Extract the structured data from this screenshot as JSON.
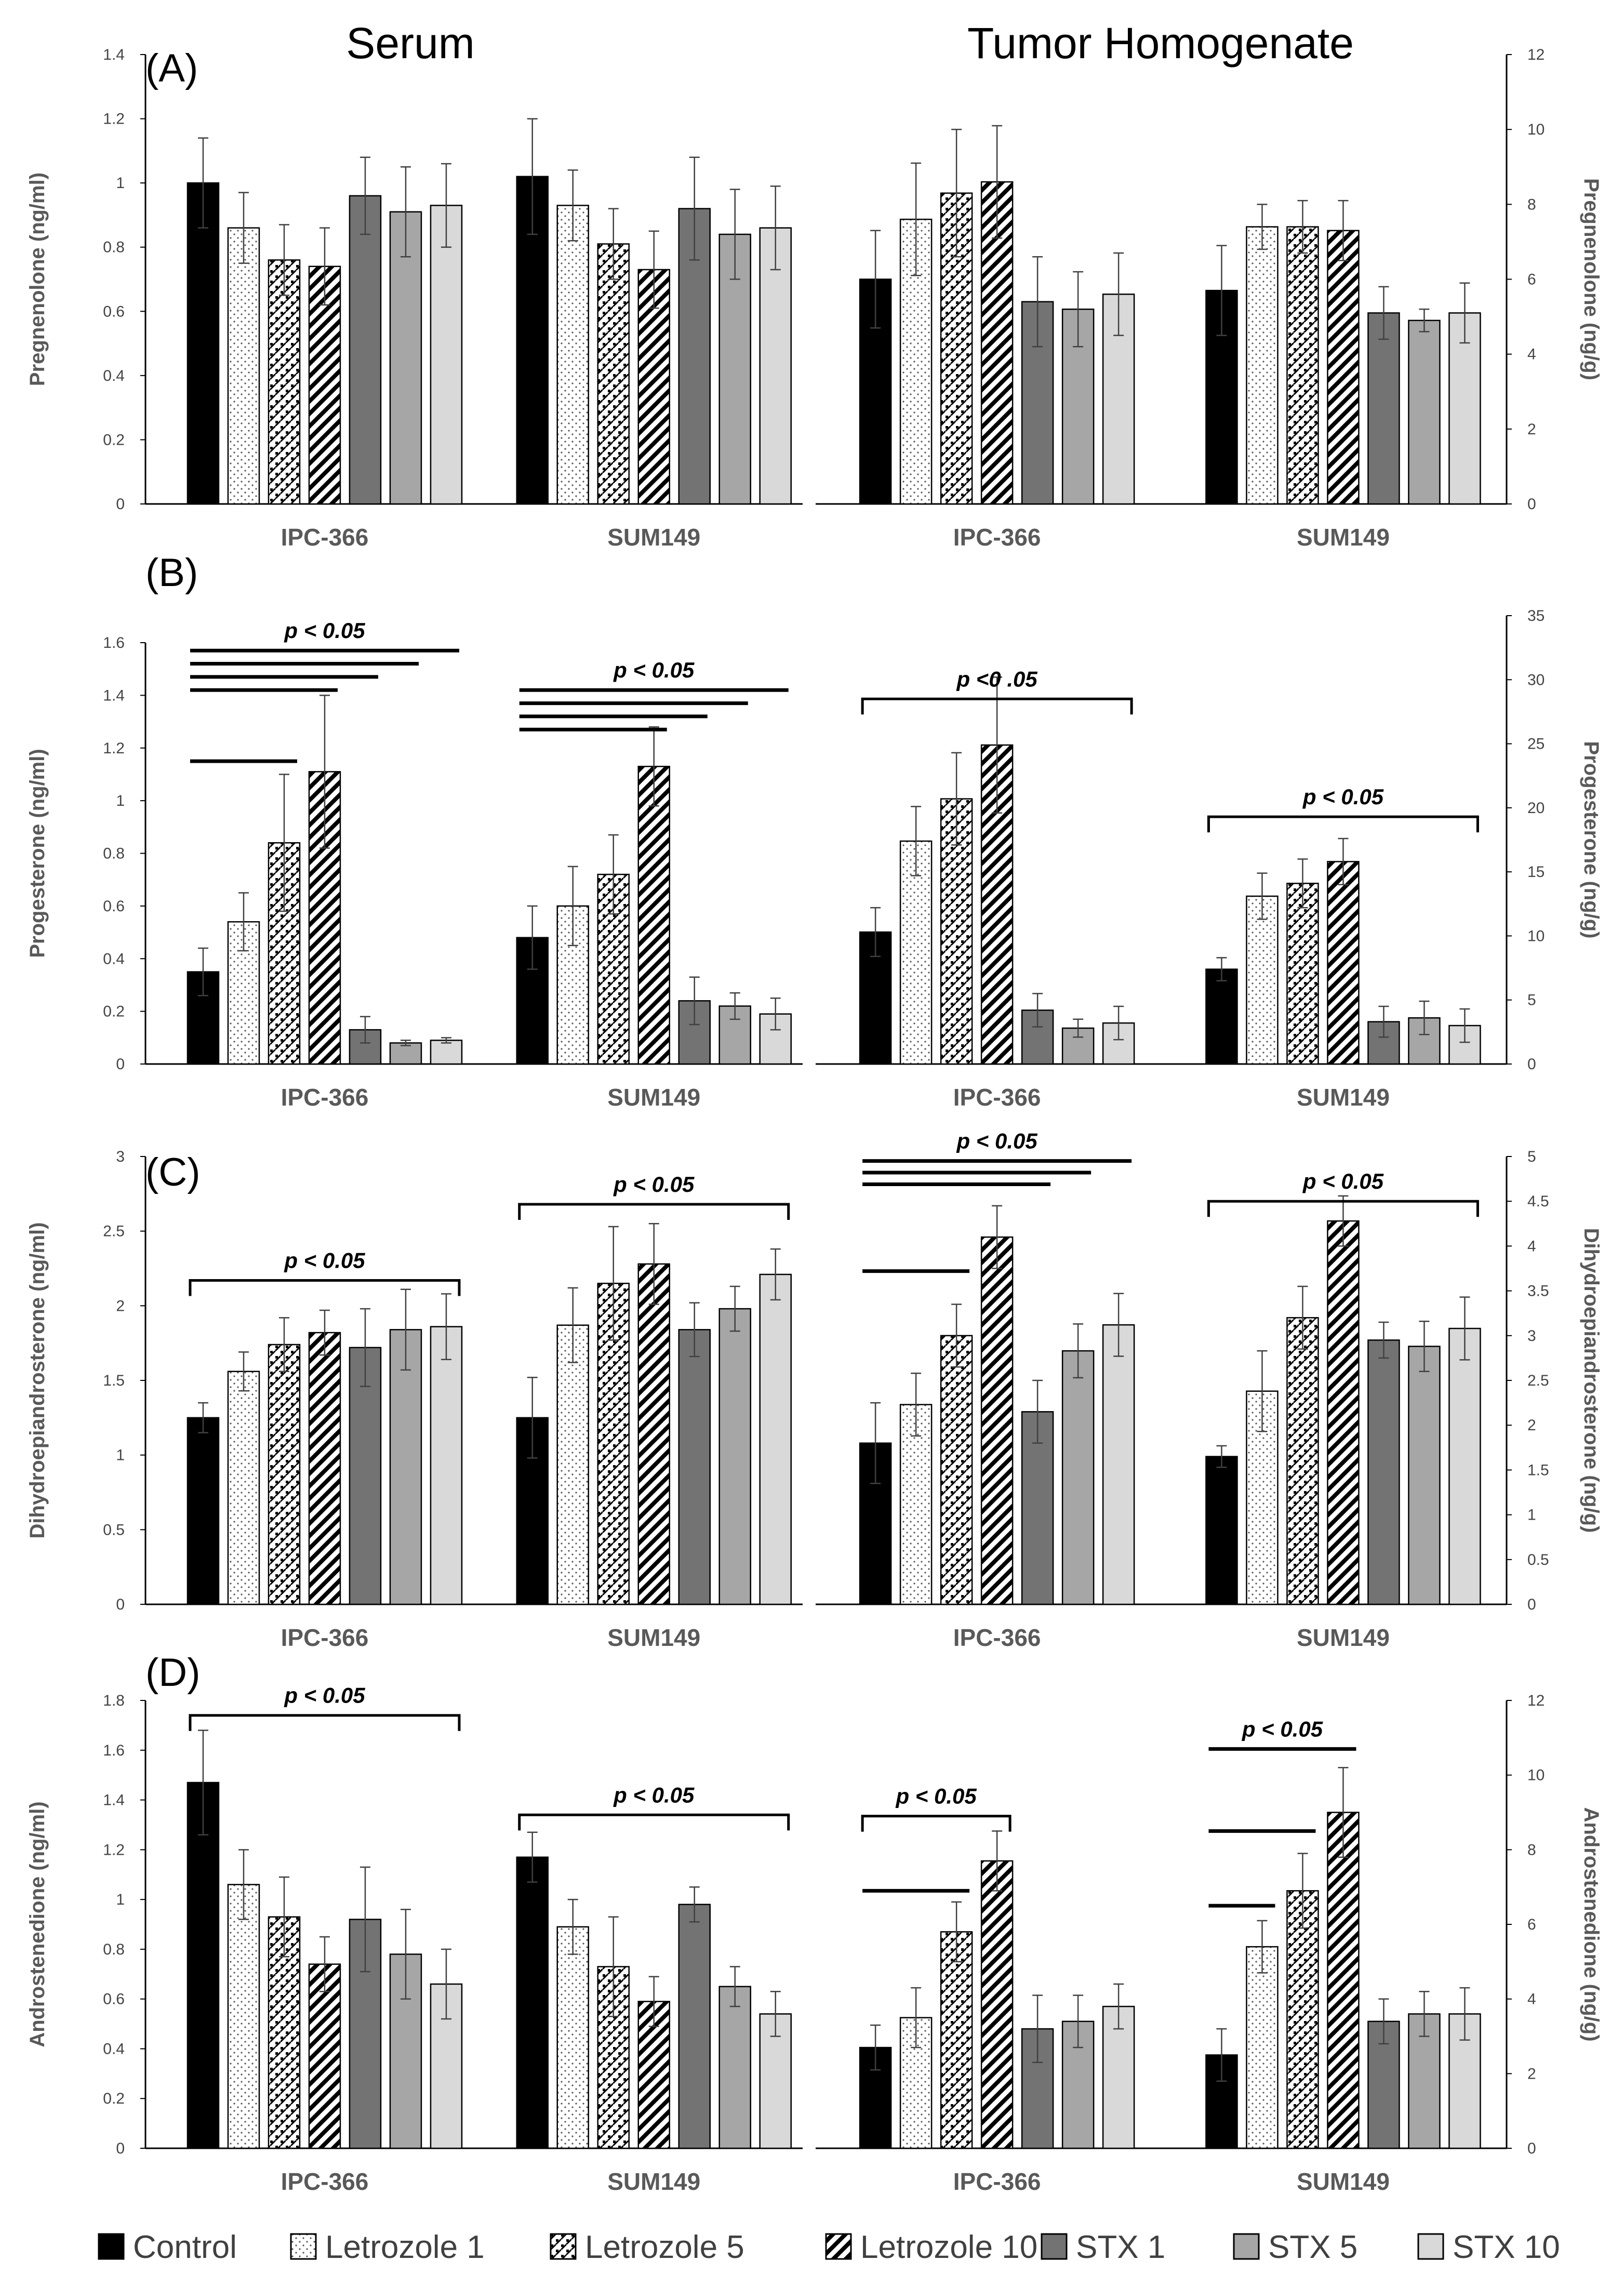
{
  "column_titles": [
    "Serum",
    "Tumor Homogenate"
  ],
  "legend": [
    {
      "label": "Control",
      "pattern": "black"
    },
    {
      "label": "Letrozole 1",
      "pattern": "dots"
    },
    {
      "label": "Letrozole 5",
      "pattern": "checker"
    },
    {
      "label": "Letrozole 10",
      "pattern": "diag"
    },
    {
      "label": "STX 1",
      "pattern": "dark"
    },
    {
      "label": "STX 5",
      "pattern": "mid"
    },
    {
      "label": "STX 10",
      "pattern": "light"
    }
  ],
  "colors": {
    "control": "#000000",
    "stx1": "#737373",
    "stx5": "#a6a6a6",
    "stx10": "#d9d9d9",
    "axis": "#7f7f7f"
  },
  "chart_data": [
    {
      "type": "bar",
      "panel": "(A)",
      "matrix": "Serum",
      "ylabel": "Pregnenolone (ng/ml)",
      "axis_side": "left",
      "ylim": [
        0,
        1.4
      ],
      "ticks": [
        "0",
        "0.2",
        "0.4",
        "0.6",
        "0.8",
        "1",
        "1.2",
        "1.4"
      ],
      "categories": [
        "IPC-366",
        "SUM149"
      ],
      "series": [
        {
          "name": "Control",
          "values": [
            1.0,
            1.02
          ],
          "errors": [
            0.14,
            0.18
          ]
        },
        {
          "name": "Letrozole 1",
          "values": [
            0.86,
            0.93
          ],
          "errors": [
            0.11,
            0.11
          ]
        },
        {
          "name": "Letrozole 5",
          "values": [
            0.76,
            0.81
          ],
          "errors": [
            0.11,
            0.11
          ]
        },
        {
          "name": "Letrozole 10",
          "values": [
            0.74,
            0.73
          ],
          "errors": [
            0.12,
            0.12
          ]
        },
        {
          "name": "STX 1",
          "values": [
            0.96,
            0.92
          ],
          "errors": [
            0.12,
            0.16
          ]
        },
        {
          "name": "STX 5",
          "values": [
            0.91,
            0.84
          ],
          "errors": [
            0.14,
            0.14
          ]
        },
        {
          "name": "STX 10",
          "values": [
            0.93,
            0.86
          ],
          "errors": [
            0.13,
            0.13
          ]
        }
      ],
      "significance": {
        "label": "",
        "lines": []
      }
    },
    {
      "type": "bar",
      "panel": "",
      "matrix": "Tumor Homogenate",
      "ylabel": "Pregnenolone (ng/g)",
      "axis_side": "right",
      "ylim": [
        0,
        12
      ],
      "ticks": [
        "0",
        "2",
        "4",
        "6",
        "8",
        "10",
        "12"
      ],
      "categories": [
        "IPC-366",
        "SUM149"
      ],
      "series": [
        {
          "name": "Control",
          "values": [
            6.0,
            5.7
          ],
          "errors": [
            1.3,
            1.2
          ]
        },
        {
          "name": "Letrozole 1",
          "values": [
            7.6,
            7.4
          ],
          "errors": [
            1.5,
            0.6
          ]
        },
        {
          "name": "Letrozole 5",
          "values": [
            8.3,
            7.4
          ],
          "errors": [
            1.7,
            0.7
          ]
        },
        {
          "name": "Letrozole 10",
          "values": [
            8.6,
            7.3
          ],
          "errors": [
            1.5,
            0.8
          ]
        },
        {
          "name": "STX 1",
          "values": [
            5.4,
            5.1
          ],
          "errors": [
            1.2,
            0.7
          ]
        },
        {
          "name": "STX 5",
          "values": [
            5.2,
            4.9
          ],
          "errors": [
            1.0,
            0.3
          ]
        },
        {
          "name": "STX 10",
          "values": [
            5.6,
            5.1
          ],
          "errors": [
            1.1,
            0.8
          ]
        }
      ],
      "significance": {
        "label": "",
        "lines": []
      }
    },
    {
      "type": "bar",
      "panel": "(B)",
      "matrix": "Serum",
      "ylabel": "Progesterone (ng/ml)",
      "axis_side": "left",
      "ylim": [
        0,
        1.6
      ],
      "ticks": [
        "0",
        "0.2",
        "0.4",
        "0.6",
        "0.8",
        "1",
        "1.2",
        "1.4",
        "1.6"
      ],
      "categories": [
        "IPC-366",
        "SUM149"
      ],
      "series": [
        {
          "name": "Control",
          "values": [
            0.35,
            0.48
          ],
          "errors": [
            0.09,
            0.12
          ]
        },
        {
          "name": "Letrozole 1",
          "values": [
            0.54,
            0.6
          ],
          "errors": [
            0.11,
            0.15
          ]
        },
        {
          "name": "Letrozole 5",
          "values": [
            0.84,
            0.72
          ],
          "errors": [
            0.26,
            0.15
          ]
        },
        {
          "name": "Letrozole 10",
          "values": [
            1.11,
            1.13
          ],
          "errors": [
            0.29,
            0.15
          ]
        },
        {
          "name": "STX 1",
          "values": [
            0.13,
            0.24
          ],
          "errors": [
            0.05,
            0.09
          ]
        },
        {
          "name": "STX 5",
          "values": [
            0.08,
            0.22
          ],
          "errors": [
            0.01,
            0.05
          ]
        },
        {
          "name": "STX 10",
          "values": [
            0.09,
            0.19
          ],
          "errors": [
            0.01,
            0.06
          ]
        }
      ],
      "significance": {
        "label": "p < 0.05",
        "lines": [
          {
            "group": 0,
            "from": 0,
            "to": 6,
            "level": 1.57,
            "style": "plain"
          },
          {
            "group": 0,
            "from": 0,
            "to": 5,
            "level": 1.52,
            "style": "plain"
          },
          {
            "group": 0,
            "from": 0,
            "to": 4,
            "level": 1.47,
            "style": "plain"
          },
          {
            "group": 0,
            "from": 0,
            "to": 3,
            "level": 1.42,
            "style": "plain"
          },
          {
            "group": 0,
            "from": 0,
            "to": 2,
            "level": 1.15,
            "style": "plain"
          },
          {
            "group": 1,
            "from": 0,
            "to": 6,
            "level": 1.42,
            "style": "plain"
          },
          {
            "group": 1,
            "from": 0,
            "to": 5,
            "level": 1.37,
            "style": "plain"
          },
          {
            "group": 1,
            "from": 0,
            "to": 4,
            "level": 1.32,
            "style": "plain"
          },
          {
            "group": 1,
            "from": 0,
            "to": 3,
            "level": 1.27,
            "style": "plain"
          }
        ]
      }
    },
    {
      "type": "bar",
      "panel": "",
      "matrix": "Tumor Homogenate",
      "ylabel": "Progesterone (ng/g)",
      "axis_side": "right",
      "ylim": [
        0,
        35
      ],
      "ticks": [
        "0",
        "5",
        "10",
        "15",
        "20",
        "25",
        "30",
        "35"
      ],
      "categories": [
        "IPC-366",
        "SUM149"
      ],
      "series": [
        {
          "name": "Control",
          "values": [
            10.3,
            7.4
          ],
          "errors": [
            1.9,
            0.9
          ]
        },
        {
          "name": "Letrozole 1",
          "values": [
            17.4,
            13.1
          ],
          "errors": [
            2.7,
            1.8
          ]
        },
        {
          "name": "Letrozole 5",
          "values": [
            20.7,
            14.1
          ],
          "errors": [
            3.6,
            1.9
          ]
        },
        {
          "name": "Letrozole 10",
          "values": [
            24.9,
            15.8
          ],
          "errors": [
            5.3,
            1.8
          ]
        },
        {
          "name": "STX 1",
          "values": [
            4.2,
            3.3
          ],
          "errors": [
            1.3,
            1.2
          ]
        },
        {
          "name": "STX 5",
          "values": [
            2.8,
            3.6
          ],
          "errors": [
            0.7,
            1.3
          ]
        },
        {
          "name": "STX 10",
          "values": [
            3.2,
            3.0
          ],
          "errors": [
            1.3,
            1.3
          ]
        }
      ],
      "significance": {
        "label": "p <0 .05",
        "label_b": "p < 0.05",
        "lines": [
          {
            "group": 0,
            "from": 0,
            "to": 6,
            "level": 28.5,
            "style": "bracket"
          },
          {
            "group": 1,
            "from": 0,
            "to": 6,
            "level": 19.3,
            "style": "bracket"
          }
        ]
      }
    },
    {
      "type": "bar",
      "panel": "(C)",
      "matrix": "Serum",
      "ylabel": "Dihydroepiandrosterone (ng/ml)",
      "axis_side": "left",
      "ylim": [
        0,
        3
      ],
      "ticks": [
        "0",
        "0.5",
        "1",
        "1.5",
        "2",
        "2.5",
        "3"
      ],
      "categories": [
        "IPC-366",
        "SUM149"
      ],
      "series": [
        {
          "name": "Control",
          "values": [
            1.25,
            1.25
          ],
          "errors": [
            0.1,
            0.27
          ]
        },
        {
          "name": "Letrozole 1",
          "values": [
            1.56,
            1.87
          ],
          "errors": [
            0.13,
            0.25
          ]
        },
        {
          "name": "Letrozole 5",
          "values": [
            1.74,
            2.15
          ],
          "errors": [
            0.18,
            0.38
          ]
        },
        {
          "name": "Letrozole 10",
          "values": [
            1.82,
            2.28
          ],
          "errors": [
            0.15,
            0.27
          ]
        },
        {
          "name": "STX 1",
          "values": [
            1.72,
            1.84
          ],
          "errors": [
            0.26,
            0.18
          ]
        },
        {
          "name": "STX 5",
          "values": [
            1.84,
            1.98
          ],
          "errors": [
            0.27,
            0.15
          ]
        },
        {
          "name": "STX 10",
          "values": [
            1.86,
            2.21
          ],
          "errors": [
            0.22,
            0.17
          ]
        }
      ],
      "significance": {
        "label": "p < 0.05",
        "lines": [
          {
            "group": 0,
            "from": 0,
            "to": 6,
            "level": 2.17,
            "style": "bracket"
          },
          {
            "group": 1,
            "from": 0,
            "to": 6,
            "level": 2.68,
            "style": "bracket"
          }
        ]
      }
    },
    {
      "type": "bar",
      "panel": "",
      "matrix": "Tumor Homogenate",
      "ylabel": "Dihydroepiandrosterone (ng/g)",
      "axis_side": "right",
      "ylim": [
        0,
        5
      ],
      "ticks": [
        "0",
        "0.5",
        "1",
        "1.5",
        "2",
        "2.5",
        "3",
        "3.5",
        "4",
        "4.5",
        "5"
      ],
      "categories": [
        "IPC-366",
        "SUM149"
      ],
      "series": [
        {
          "name": "Control",
          "values": [
            1.8,
            1.65
          ],
          "errors": [
            0.45,
            0.12
          ]
        },
        {
          "name": "Letrozole 1",
          "values": [
            2.23,
            2.38
          ],
          "errors": [
            0.35,
            0.45
          ]
        },
        {
          "name": "Letrozole 5",
          "values": [
            3.0,
            3.2
          ],
          "errors": [
            0.35,
            0.35
          ]
        },
        {
          "name": "Letrozole 10",
          "values": [
            4.1,
            4.28
          ],
          "errors": [
            0.35,
            0.28
          ]
        },
        {
          "name": "STX 1",
          "values": [
            2.15,
            2.95
          ],
          "errors": [
            0.35,
            0.2
          ]
        },
        {
          "name": "STX 5",
          "values": [
            2.83,
            2.88
          ],
          "errors": [
            0.3,
            0.28
          ]
        },
        {
          "name": "STX 10",
          "values": [
            3.12,
            3.08
          ],
          "errors": [
            0.35,
            0.35
          ]
        }
      ],
      "significance": {
        "label": "p < 0.05",
        "lines": [
          {
            "group": 0,
            "from": 0,
            "to": 6,
            "level": 4.95,
            "style": "plain"
          },
          {
            "group": 0,
            "from": 0,
            "to": 5,
            "level": 4.82,
            "style": "plain"
          },
          {
            "group": 0,
            "from": 0,
            "to": 4,
            "level": 4.69,
            "style": "plain"
          },
          {
            "group": 0,
            "from": 0,
            "to": 2,
            "level": 3.72,
            "style": "plain"
          },
          {
            "group": 1,
            "from": 0,
            "to": 6,
            "level": 4.5,
            "style": "bracket"
          }
        ]
      }
    },
    {
      "type": "bar",
      "panel": "(D)",
      "matrix": "Serum",
      "ylabel": "Androstenedione (ng/ml)",
      "axis_side": "left",
      "ylim": [
        0,
        1.8
      ],
      "ticks": [
        "0",
        "0.2",
        "0.4",
        "0.6",
        "0.8",
        "1",
        "1.2",
        "1.4",
        "1.6",
        "1.8"
      ],
      "categories": [
        "IPC-366",
        "SUM149"
      ],
      "series": [
        {
          "name": "Control",
          "values": [
            1.47,
            1.17
          ],
          "errors": [
            0.21,
            0.1
          ]
        },
        {
          "name": "Letrozole 1",
          "values": [
            1.06,
            0.89
          ],
          "errors": [
            0.14,
            0.11
          ]
        },
        {
          "name": "Letrozole 5",
          "values": [
            0.93,
            0.73
          ],
          "errors": [
            0.16,
            0.2
          ]
        },
        {
          "name": "Letrozole 10",
          "values": [
            0.74,
            0.59
          ],
          "errors": [
            0.11,
            0.1
          ]
        },
        {
          "name": "STX 1",
          "values": [
            0.92,
            0.98
          ],
          "errors": [
            0.21,
            0.07
          ]
        },
        {
          "name": "STX 5",
          "values": [
            0.78,
            0.65
          ],
          "errors": [
            0.18,
            0.08
          ]
        },
        {
          "name": "STX 10",
          "values": [
            0.66,
            0.54
          ],
          "errors": [
            0.14,
            0.09
          ]
        }
      ],
      "significance": {
        "label": "p < 0.05",
        "lines": [
          {
            "group": 0,
            "from": 0,
            "to": 6,
            "level": 1.74,
            "style": "bracket"
          },
          {
            "group": 1,
            "from": 0,
            "to": 6,
            "level": 1.34,
            "style": "bracket"
          }
        ]
      }
    },
    {
      "type": "bar",
      "panel": "",
      "matrix": "Tumor Homogenate",
      "ylabel": "Androstenedione (ng/g)",
      "axis_side": "right",
      "ylim": [
        0,
        12
      ],
      "ticks": [
        "0",
        "2",
        "4",
        "6",
        "8",
        "10",
        "12"
      ],
      "categories": [
        "IPC-366",
        "SUM149"
      ],
      "series": [
        {
          "name": "Control",
          "values": [
            2.7,
            2.5
          ],
          "errors": [
            0.6,
            0.7
          ]
        },
        {
          "name": "Letrozole 1",
          "values": [
            3.5,
            5.4
          ],
          "errors": [
            0.8,
            0.7
          ]
        },
        {
          "name": "Letrozole 5",
          "values": [
            5.8,
            6.9
          ],
          "errors": [
            0.8,
            1.0
          ]
        },
        {
          "name": "Letrozole 10",
          "values": [
            7.7,
            9.0
          ],
          "errors": [
            0.8,
            1.2
          ]
        },
        {
          "name": "STX 1",
          "values": [
            3.2,
            3.4
          ],
          "errors": [
            0.9,
            0.6
          ]
        },
        {
          "name": "STX 5",
          "values": [
            3.4,
            3.6
          ],
          "errors": [
            0.7,
            0.6
          ]
        },
        {
          "name": "STX 10",
          "values": [
            3.8,
            3.6
          ],
          "errors": [
            0.6,
            0.7
          ]
        }
      ],
      "significance": {
        "label": "p < 0.05",
        "lines": [
          {
            "group": 0,
            "from": 0,
            "to": 3,
            "level": 8.9,
            "style": "bracket"
          },
          {
            "group": 0,
            "from": 0,
            "to": 2,
            "level": 6.9,
            "style": "plain"
          },
          {
            "group": 1,
            "from": 0,
            "to": 3,
            "level": 10.7,
            "style": "plain"
          },
          {
            "group": 1,
            "from": 0,
            "to": 2,
            "level": 8.5,
            "style": "plain"
          },
          {
            "group": 1,
            "from": 0,
            "to": 1,
            "level": 6.5,
            "style": "plain"
          }
        ]
      }
    }
  ]
}
